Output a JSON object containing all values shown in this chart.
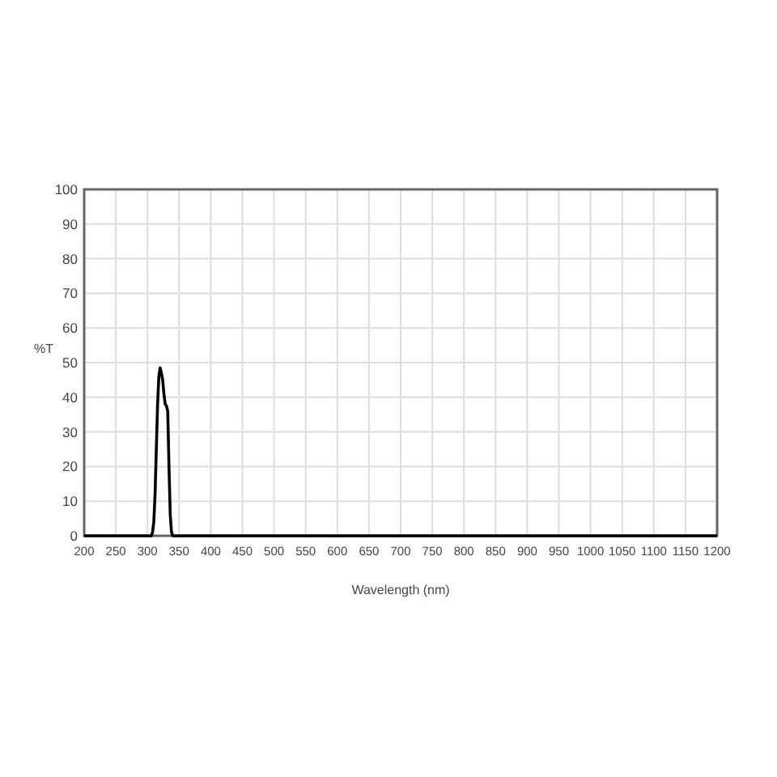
{
  "chart_data": {
    "type": "line",
    "xlabel": "Wavelength (nm)",
    "ylabel": "%T",
    "series": [
      {
        "color": "#000000",
        "x": [
          200,
          300,
          306,
          308,
          310,
          312,
          314,
          316,
          318,
          320,
          322,
          324,
          326,
          328,
          330,
          332,
          334,
          336,
          338,
          340,
          1200
        ],
        "values": [
          0,
          0,
          0,
          1,
          4,
          12,
          25,
          38,
          46,
          48.5,
          47,
          45,
          41,
          38,
          37.5,
          36,
          20,
          6,
          1,
          0,
          0
        ]
      }
    ],
    "xlim": [
      200,
      1200
    ],
    "xticks": [
      200,
      250,
      300,
      350,
      400,
      450,
      500,
      550,
      600,
      650,
      700,
      750,
      800,
      850,
      900,
      950,
      1000,
      1050,
      1100,
      1150,
      1200
    ],
    "ylim": [
      0,
      100
    ],
    "yticks": [
      0,
      10,
      20,
      30,
      40,
      50,
      60,
      70,
      80,
      90,
      100
    ],
    "grid": true,
    "marker": "none",
    "line_style": "solid"
  }
}
